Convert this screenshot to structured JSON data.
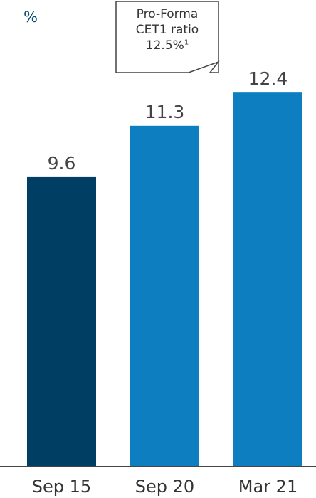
{
  "chart_data": {
    "type": "bar",
    "unit_label": "%",
    "categories": [
      "Sep 15",
      "Sep 20",
      "Mar 21"
    ],
    "values": [
      9.6,
      11.3,
      12.4
    ],
    "value_labels": [
      "9.6",
      "11.3",
      "12.4"
    ],
    "colors": [
      "#003f63",
      "#0d7fc1",
      "#0d7fc1"
    ],
    "ylim": [
      0,
      13.3
    ],
    "grid": false,
    "callout": {
      "line1": "Pro-Forma",
      "line2": "CET1 ratio",
      "line3": "12.5%",
      "footnote_marker": "1",
      "target_category": "Mar 21"
    }
  }
}
